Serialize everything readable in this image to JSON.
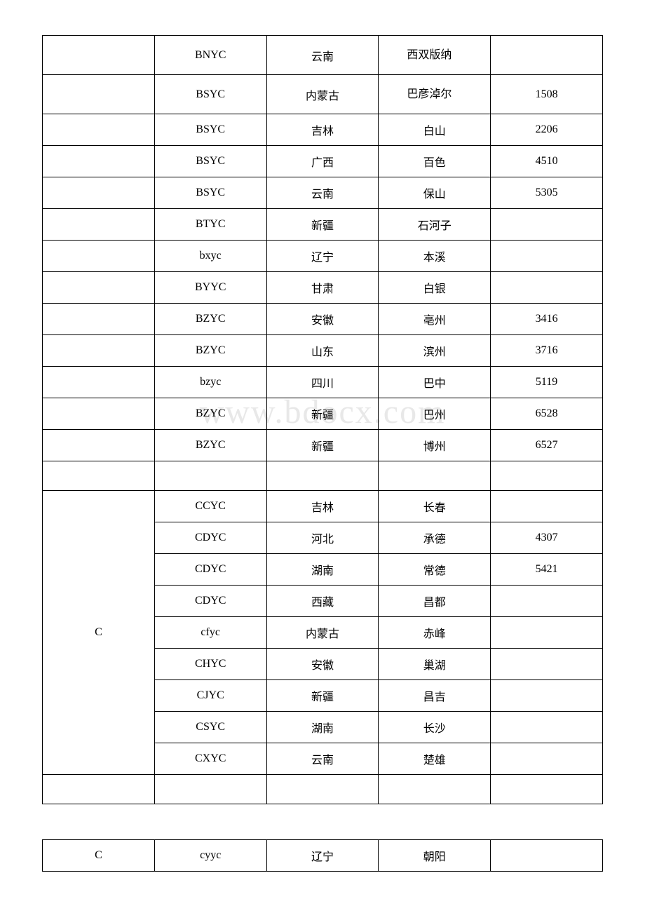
{
  "watermark": "www.bdocx.com",
  "table1": {
    "rows": [
      {
        "c1": "",
        "c2": "BNYC",
        "c3": "云南",
        "c4": "西双版纳",
        "c5": "",
        "wrap": true,
        "tall": true
      },
      {
        "c1": "",
        "c2": "BSYC",
        "c3": "内蒙古",
        "c4": "巴彦淖尔",
        "c5": "1508",
        "wrap": true,
        "tall": true
      },
      {
        "c1": "",
        "c2": "BSYC",
        "c3": "吉林",
        "c4": "白山",
        "c5": "2206"
      },
      {
        "c1": "",
        "c2": "BSYC",
        "c3": "广西",
        "c4": "百色",
        "c5": "4510"
      },
      {
        "c1": "",
        "c2": "BSYC",
        "c3": "云南",
        "c4": "保山",
        "c5": "5305"
      },
      {
        "c1": "",
        "c2": "BTYC",
        "c3": "新疆",
        "c4": "石河子",
        "c5": ""
      },
      {
        "c1": "",
        "c2": "bxyc",
        "c3": "辽宁",
        "c4": "本溪",
        "c5": ""
      },
      {
        "c1": "",
        "c2": "BYYC",
        "c3": "甘肃",
        "c4": "白银",
        "c5": ""
      },
      {
        "c1": "",
        "c2": "BZYC",
        "c3": "安徽",
        "c4": "亳州",
        "c5": "3416"
      },
      {
        "c1": "",
        "c2": "BZYC",
        "c3": "山东",
        "c4": "滨州",
        "c5": "3716"
      },
      {
        "c1": "",
        "c2": "bzyc",
        "c3": "四川",
        "c4": "巴中",
        "c5": "5119"
      },
      {
        "c1": "",
        "c2": "BZYC",
        "c3": "新疆",
        "c4": "巴州",
        "c5": "6528"
      },
      {
        "c1": "",
        "c2": "BZYC",
        "c3": "新疆",
        "c4": "博州",
        "c5": "6527"
      }
    ],
    "spacer": {
      "c1": "",
      "c2": "",
      "c3": "",
      "c4": "",
      "c5": ""
    },
    "group2_label": "C",
    "group2_rows": [
      {
        "c2": "CCYC",
        "c3": "吉林",
        "c4": "长春",
        "c5": ""
      },
      {
        "c2": "CDYC",
        "c3": "河北",
        "c4": "承德",
        "c5": "4307"
      },
      {
        "c2": "CDYC",
        "c3": "湖南",
        "c4": "常德",
        "c5": "5421"
      },
      {
        "c2": "CDYC",
        "c3": "西藏",
        "c4": "昌都",
        "c5": ""
      },
      {
        "c2": "cfyc",
        "c3": "内蒙古",
        "c4": "赤峰",
        "c5": ""
      },
      {
        "c2": "CHYC",
        "c3": "安徽",
        "c4": "巢湖",
        "c5": ""
      },
      {
        "c2": "CJYC",
        "c3": "新疆",
        "c4": "昌吉",
        "c5": ""
      },
      {
        "c2": "CSYC",
        "c3": "湖南",
        "c4": "长沙",
        "c5": ""
      },
      {
        "c2": "CXYC",
        "c3": "云南",
        "c4": "楚雄",
        "c5": ""
      }
    ],
    "spacer2": {
      "c1": "",
      "c2": "",
      "c3": "",
      "c4": "",
      "c5": ""
    }
  },
  "table2": {
    "row": {
      "c1": "C",
      "c2": "cyyc",
      "c3": "辽宁",
      "c4": "朝阳",
      "c5": ""
    }
  }
}
